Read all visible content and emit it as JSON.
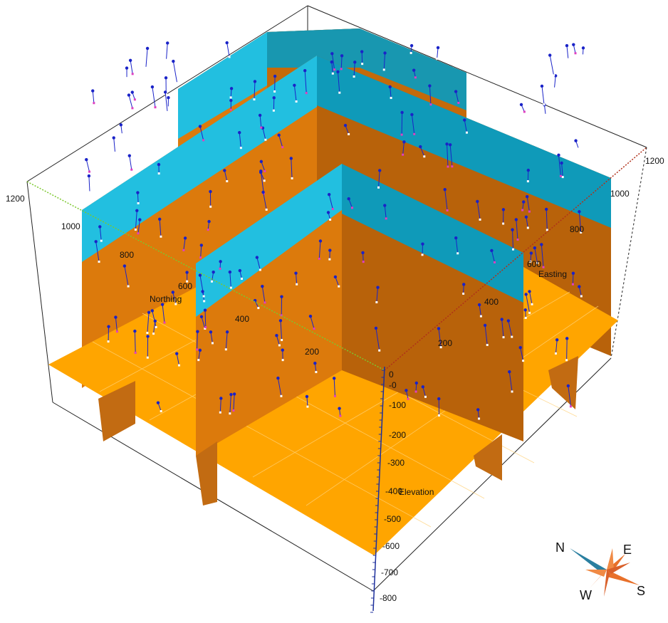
{
  "axes": {
    "northing": {
      "title": "Northing",
      "ticks": [
        "200",
        "400",
        "600",
        "800",
        "1000",
        "1200"
      ],
      "color": "#7cc82e"
    },
    "easting": {
      "title": "Easting",
      "ticks": [
        "200",
        "400",
        "600",
        "800",
        "1000",
        "1200"
      ],
      "color": "#b0301a"
    },
    "elevation": {
      "title": "Elevation",
      "ticks": [
        "0",
        "-0",
        "-100",
        "-200",
        "-300",
        "-400",
        "-500",
        "-600",
        "-700",
        "-800"
      ],
      "color": "#1d2f9c"
    }
  },
  "compass": {
    "n": "N",
    "e": "E",
    "s": "S",
    "w": "W"
  },
  "colors": {
    "slice_orange": "#dc7a0c",
    "slice_orange_dark": "#b8620a",
    "slice_cyan": "#22bfe0",
    "slice_cyan_dark": "#0f9ab9",
    "floor": "#ffa500",
    "well_marker": "#1a23c8",
    "compass_orange": "#e8702a",
    "compass_blue": "#2a7fa0"
  }
}
